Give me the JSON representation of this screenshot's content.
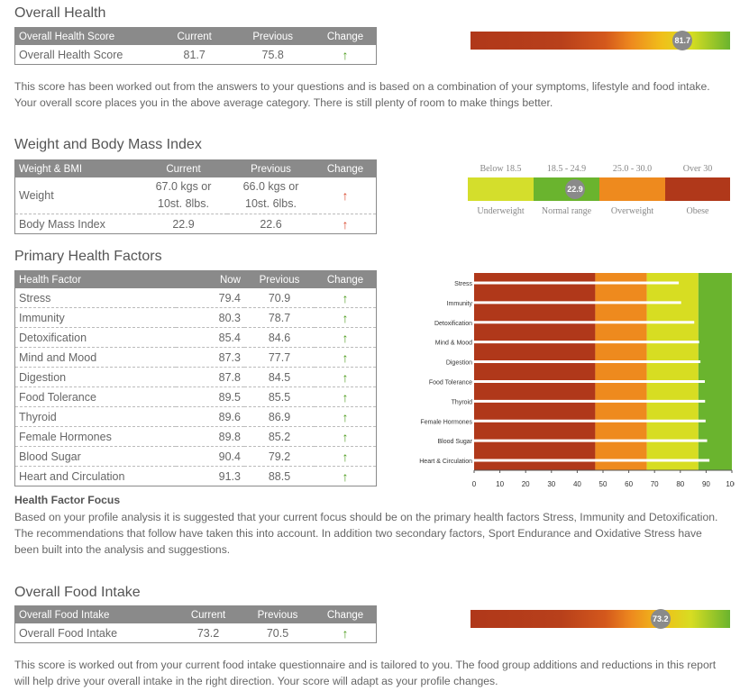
{
  "overall_health": {
    "title": "Overall Health",
    "headers": [
      "Overall Health Score",
      "Current",
      "Previous",
      "Change"
    ],
    "row": {
      "label": "Overall Health Score",
      "current": "81.7",
      "previous": "75.8",
      "change": "up"
    },
    "marker": "81.7",
    "marker_value": 81.7,
    "text": "This score has been worked out from the answers to your questions and is based on a combination of your symptoms, lifestyle and food intake. Your overall score places you in the above average category. There is still plenty of room to make things better."
  },
  "weight_bmi": {
    "title": "Weight and Body Mass Index",
    "headers": [
      "Weight & BMI",
      "Current",
      "Previous",
      "Change"
    ],
    "rows": [
      {
        "label": "Weight",
        "current_line1": "67.0 kgs or",
        "current_line2": "10st. 8lbs.",
        "previous_line1": "66.0 kgs or",
        "previous_line2": "10st. 6lbs.",
        "change": "up-red"
      },
      {
        "label": "Body Mass Index",
        "current": "22.9",
        "previous": "22.6",
        "change": "up-red"
      }
    ],
    "scale_top": [
      "Below 18.5",
      "18.5 - 24.9",
      "25.0 - 30.0",
      "Over 30"
    ],
    "scale_bottom": [
      "Underweight",
      "Normal range",
      "Overweight",
      "Obese"
    ],
    "scale_colors": [
      "#d4de2c",
      "#6ab42e",
      "#ee8a1e",
      "#b0381a"
    ],
    "marker": "22.9"
  },
  "primary_factors": {
    "title": "Primary Health Factors",
    "headers": [
      "Health Factor",
      "Now",
      "Previous",
      "Change"
    ],
    "rows": [
      {
        "label": "Stress",
        "now": "79.4",
        "previous": "70.9",
        "change": "up"
      },
      {
        "label": "Immunity",
        "now": "80.3",
        "previous": "78.7",
        "change": "up"
      },
      {
        "label": "Detoxification",
        "now": "85.4",
        "previous": "84.6",
        "change": "up"
      },
      {
        "label": "Mind and Mood",
        "now": "87.3",
        "previous": "77.7",
        "change": "up"
      },
      {
        "label": "Digestion",
        "now": "87.8",
        "previous": "84.5",
        "change": "up"
      },
      {
        "label": "Food Tolerance",
        "now": "89.5",
        "previous": "85.5",
        "change": "up"
      },
      {
        "label": "Thyroid",
        "now": "89.6",
        "previous": "86.9",
        "change": "up"
      },
      {
        "label": "Female Hormones",
        "now": "89.8",
        "previous": "85.2",
        "change": "up"
      },
      {
        "label": "Blood Sugar",
        "now": "90.4",
        "previous": "79.2",
        "change": "up"
      },
      {
        "label": "Heart and Circulation",
        "now": "91.3",
        "previous": "88.5",
        "change": "up"
      }
    ],
    "focus_title": "Health Factor Focus",
    "focus_text": "Based on your profile analysis it is suggested that your current focus should be on the primary health factors Stress, Immunity and Detoxification. The recommendations that follow have taken this into account. In addition two secondary factors, Sport Endurance and Oxidative Stress have been built into the analysis and suggestions."
  },
  "chart_data": {
    "type": "bar",
    "categories": [
      "Stress",
      "Immunity",
      "Detoxification",
      "Mind & Mood",
      "Digestion",
      "Food Tolerance",
      "Thyroid",
      "Female Hormones",
      "Blood Sugar",
      "Heart & Circulation"
    ],
    "values": [
      79.4,
      80.3,
      85.4,
      87.3,
      87.8,
      89.5,
      89.6,
      89.8,
      90.4,
      91.3
    ],
    "xlim": [
      0,
      100
    ],
    "ticks": [
      0,
      10,
      20,
      30,
      40,
      50,
      60,
      70,
      80,
      90,
      100
    ],
    "bands": [
      {
        "from": 0,
        "to": 47,
        "color": "#b0381a"
      },
      {
        "from": 47,
        "to": 67,
        "color": "#ee8a1e"
      },
      {
        "from": 67,
        "to": 87,
        "color": "#d7dd22"
      },
      {
        "from": 87,
        "to": 100,
        "color": "#6ab42e"
      }
    ],
    "title": "",
    "xlabel": "",
    "ylabel": ""
  },
  "food_intake": {
    "title": "Overall Food Intake",
    "headers": [
      "Overall Food Intake",
      "Current",
      "Previous",
      "Change"
    ],
    "row": {
      "label": "Overall Food Intake",
      "current": "73.2",
      "previous": "70.5",
      "change": "up"
    },
    "marker": "73.2",
    "marker_value": 73.2,
    "text": "This score is worked out from your current food intake questionnaire and is tailored to you. The food group additions and reductions in this report will help drive your overall intake in the right direction. Your score will adapt as your profile changes."
  },
  "icons": {
    "up": "↑",
    "up-red": "↑"
  }
}
